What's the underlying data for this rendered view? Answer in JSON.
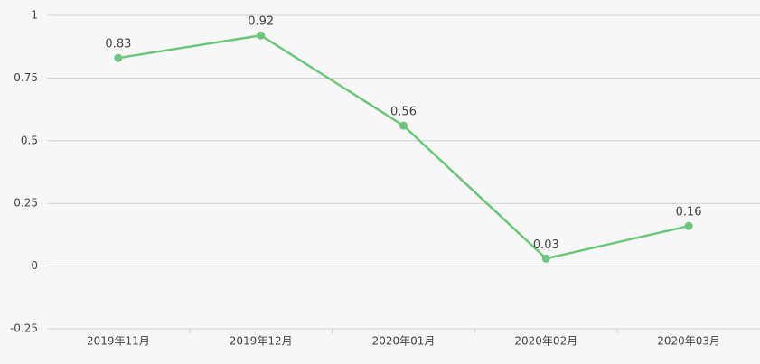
{
  "chart_data": {
    "type": "line",
    "categories": [
      "2019年11月",
      "2019年12月",
      "2020年01月",
      "2020年02月",
      "2020年03月"
    ],
    "values": [
      0.83,
      0.92,
      0.56,
      0.03,
      0.16
    ],
    "color": "#6cc67e",
    "ylim": [
      -0.25,
      1
    ],
    "yticks": [
      -0.25,
      0,
      0.25,
      0.5,
      0.75,
      1
    ],
    "grid": true
  }
}
